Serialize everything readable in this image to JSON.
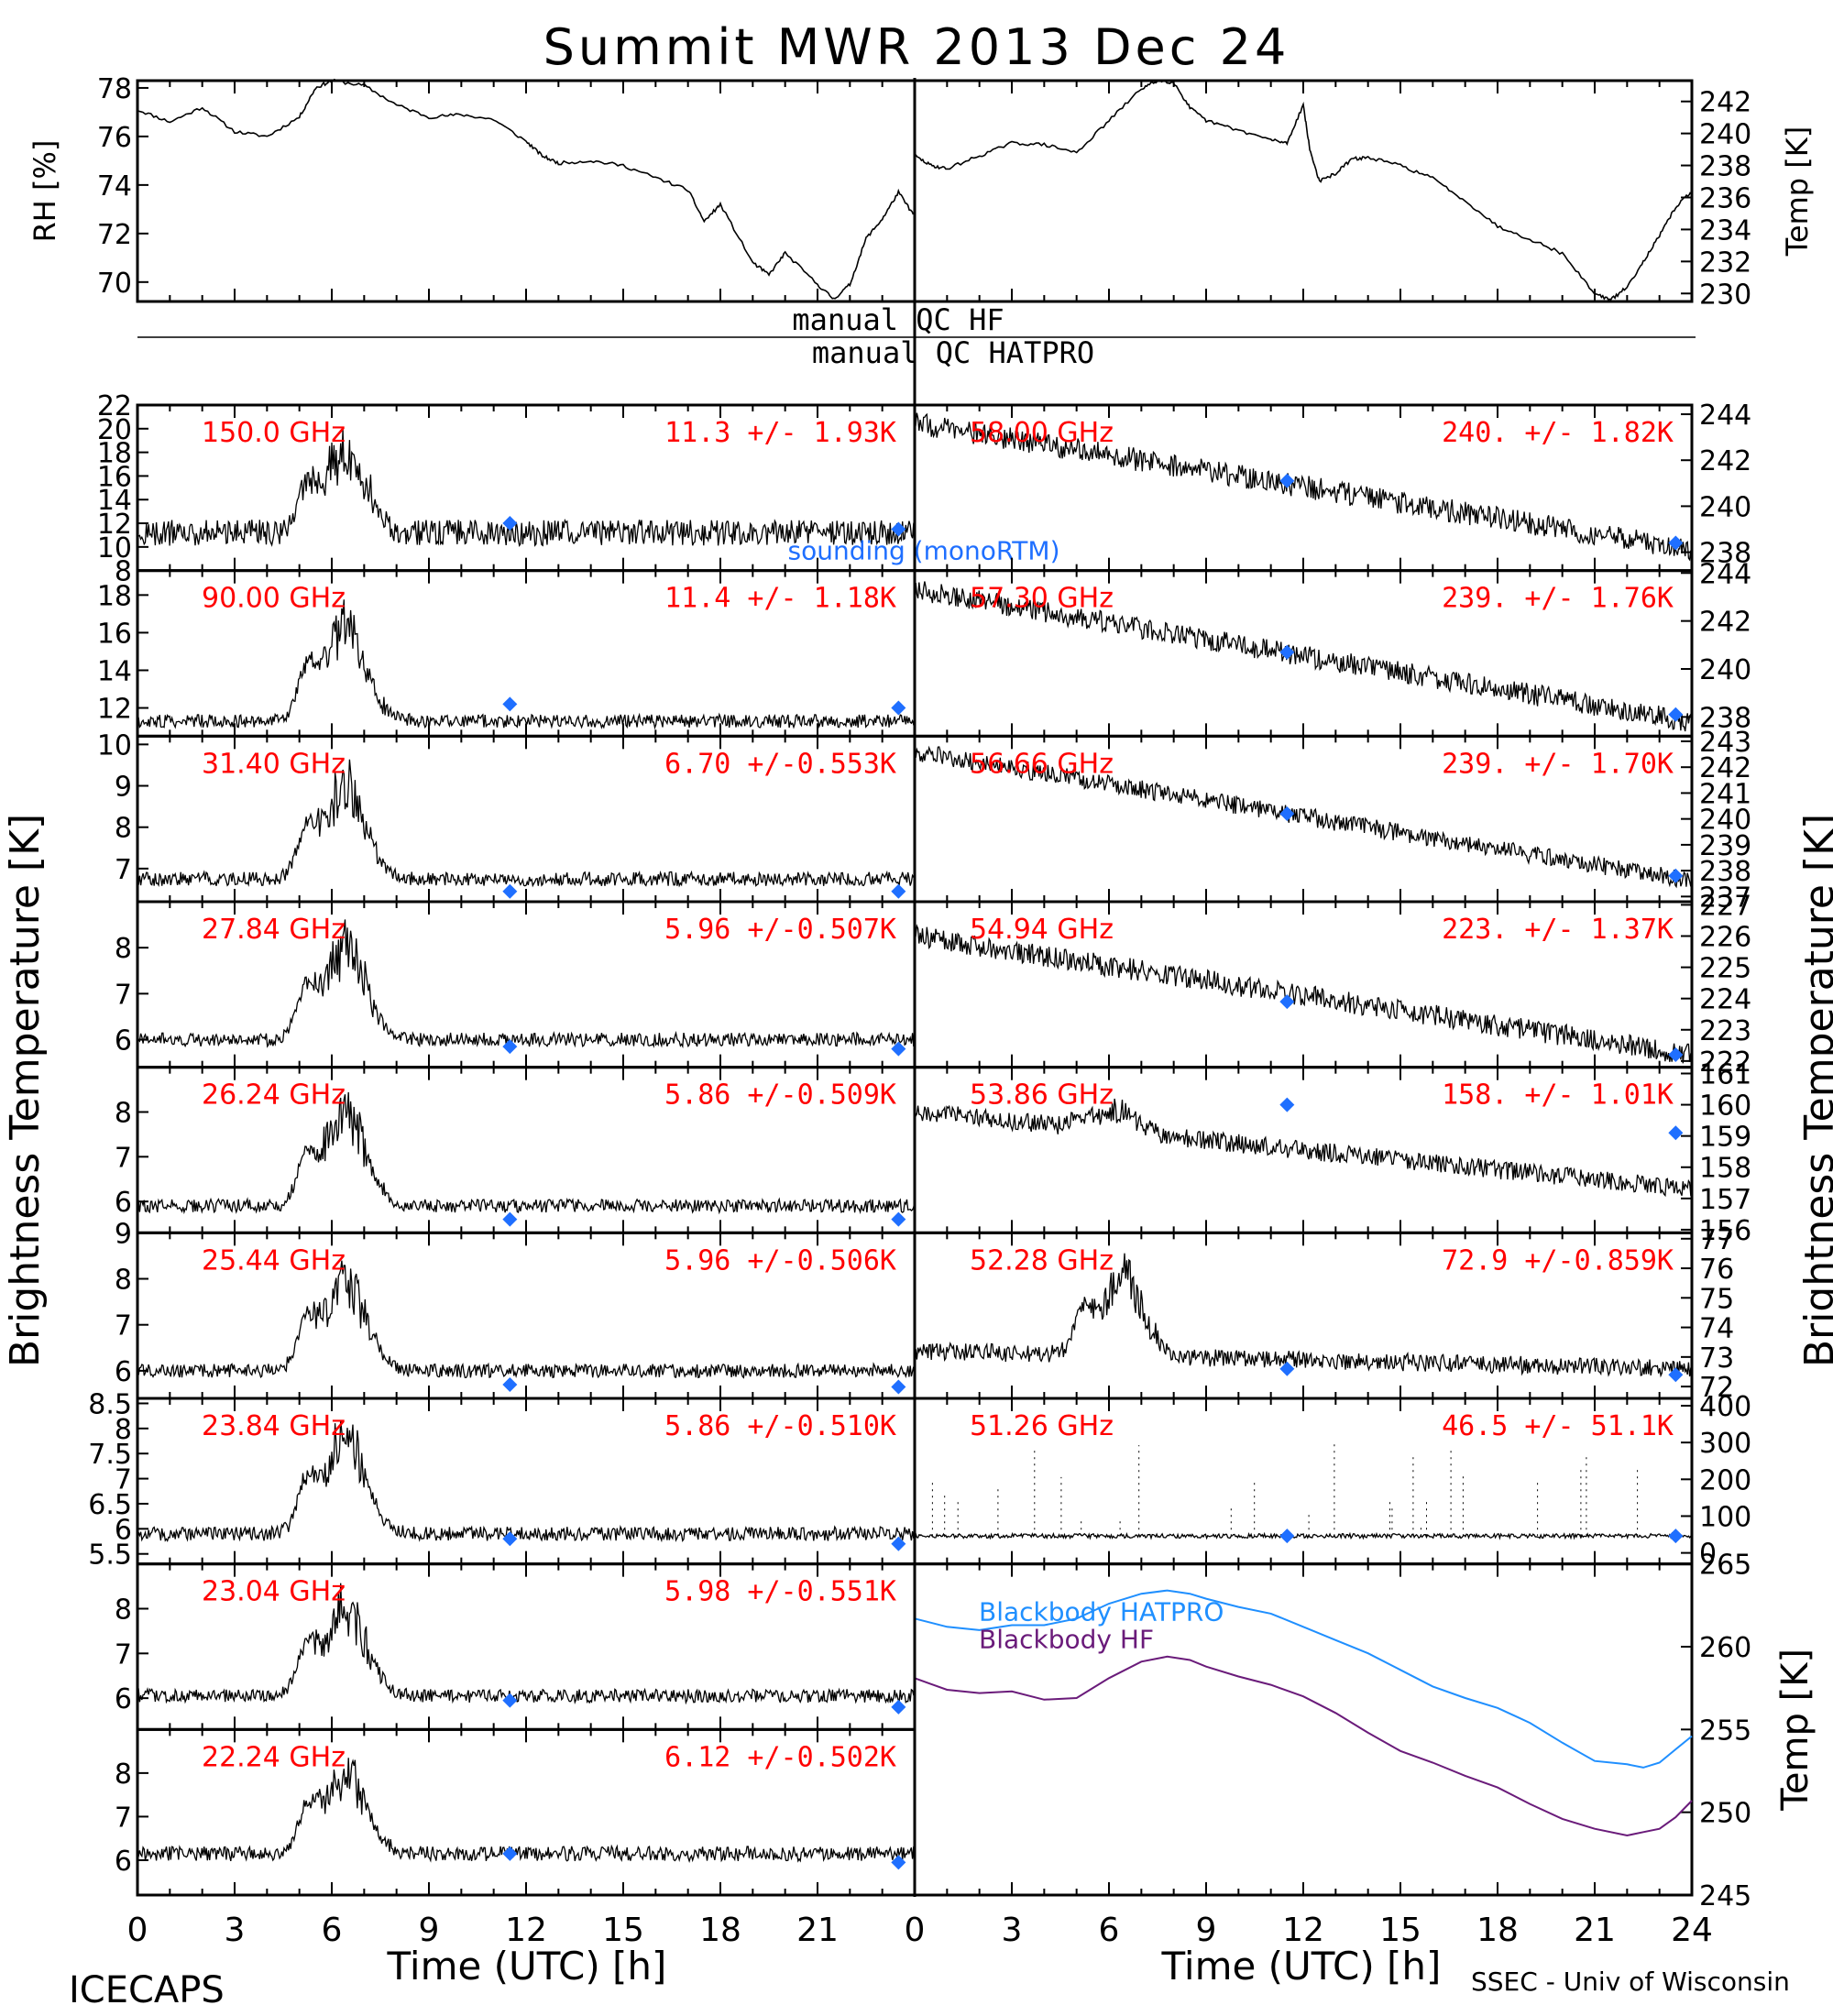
{
  "figure": {
    "title": "Summit MWR 2013 Dec 24",
    "footer_left": "ICECAPS",
    "footer_right": "SSEC - Univ of Wisconsin",
    "xlabel": "Time (UTC) [h]",
    "left_ylabel": "Brightness Temperature [K]",
    "right_ylabel": "Brightness Temperature [K]",
    "x_ticks": [
      "0",
      "3",
      "6",
      "9",
      "12",
      "15",
      "18",
      "21",
      "24"
    ],
    "qc_hf_label": "manual QC HF",
    "qc_hatpro_label": "manual QC HATPRO",
    "colors": {
      "trace": "#000000",
      "label": "#ff0000",
      "marker": "#1f6fff",
      "hatpro": "#1f8fff",
      "hf": "#6a1b7a"
    }
  },
  "chart_data": [
    {
      "id": "rh",
      "type": "line",
      "ylabel": "RH [%]",
      "xlim": [
        0,
        24
      ],
      "ylim": [
        69.2,
        78.3
      ],
      "yticks": [
        70,
        72,
        74,
        76,
        78
      ],
      "x": [
        0,
        1,
        2,
        3,
        4,
        5,
        5.5,
        6,
        7,
        8,
        9,
        10,
        11,
        12,
        12.5,
        13,
        14,
        15,
        16,
        17,
        17.5,
        18,
        19,
        19.5,
        20,
        21,
        21.5,
        22,
        22.5,
        23,
        23.5,
        24
      ],
      "y": [
        77.1,
        76.6,
        77.2,
        76.2,
        76.0,
        76.8,
        78.0,
        78.3,
        78.1,
        77.3,
        76.8,
        76.9,
        76.7,
        75.8,
        75.2,
        74.9,
        75.0,
        74.8,
        74.3,
        73.8,
        72.5,
        73.2,
        70.8,
        70.3,
        71.2,
        69.9,
        69.3,
        69.9,
        71.8,
        72.6,
        73.7,
        72.7
      ]
    },
    {
      "id": "temp",
      "type": "line",
      "ylabel": "Temp [K]",
      "xlim": [
        0,
        24
      ],
      "ylim": [
        229.5,
        243.3
      ],
      "yticks": [
        230,
        232,
        234,
        236,
        238,
        240,
        242
      ],
      "x": [
        0,
        0.5,
        1,
        2,
        3,
        4,
        5,
        6,
        7,
        7.5,
        8,
        8.5,
        9,
        10,
        11,
        11.5,
        12,
        12.2,
        12.5,
        13,
        13.5,
        14,
        15,
        16,
        17,
        18,
        19,
        20,
        21,
        21.5,
        22,
        22.5,
        23,
        23.5,
        24
      ],
      "y": [
        238.6,
        238.0,
        237.8,
        238.6,
        239.4,
        239.3,
        238.8,
        240.8,
        242.8,
        243.3,
        243.2,
        241.6,
        240.8,
        240.2,
        239.6,
        239.4,
        241.8,
        239.0,
        237.0,
        237.5,
        238.4,
        238.5,
        238.0,
        237.2,
        235.8,
        234.2,
        233.4,
        232.5,
        230.0,
        229.6,
        230.4,
        232.0,
        233.6,
        235.4,
        236.4
      ]
    },
    {
      "id": "f150",
      "side": "left",
      "freq": "150.0 GHz",
      "stat": "11.3 +/-  1.93K",
      "ylim": [
        8,
        22
      ],
      "yticks": [
        8,
        10,
        12,
        14,
        16,
        18,
        20,
        22
      ],
      "base": 11.2,
      "noise": 1.1,
      "spike": 9.0,
      "slope": 0,
      "markers": [
        {
          "x": 11.5,
          "y": 12.0
        },
        {
          "x": 23.5,
          "y": 11.5
        }
      ],
      "overlay": "sounding (monoRTM)"
    },
    {
      "id": "f90",
      "side": "left",
      "freq": "90.00 GHz",
      "stat": "11.4 +/-  1.18K",
      "ylim": [
        10.5,
        19.3
      ],
      "yticks": [
        12,
        14,
        16,
        18
      ],
      "base": 11.3,
      "noise": 0.35,
      "spike": 6.3,
      "slope": 0,
      "markers": [
        {
          "x": 11.5,
          "y": 12.2
        },
        {
          "x": 23.5,
          "y": 12.0
        }
      ]
    },
    {
      "id": "f3140",
      "side": "left",
      "freq": "31.40 GHz",
      "stat": "6.70 +/-0.553K",
      "ylim": [
        6.2,
        10.2
      ],
      "yticks": [
        7,
        8,
        9,
        10
      ],
      "base": 6.75,
      "noise": 0.17,
      "spike": 2.8,
      "slope": 0,
      "markers": [
        {
          "x": 11.5,
          "y": 6.45
        },
        {
          "x": 23.5,
          "y": 6.45
        }
      ]
    },
    {
      "id": "f2784",
      "side": "left",
      "freq": "27.84 GHz",
      "stat": "5.96 +/-0.507K",
      "ylim": [
        5.4,
        9.0
      ],
      "yticks": [
        6,
        7,
        8
      ],
      "base": 6.0,
      "noise": 0.15,
      "spike": 2.6,
      "slope": 0,
      "markers": [
        {
          "x": 11.5,
          "y": 5.85
        },
        {
          "x": 23.5,
          "y": 5.8
        }
      ]
    },
    {
      "id": "f2624",
      "side": "left",
      "freq": "26.24 GHz",
      "stat": "5.86 +/-0.509K",
      "ylim": [
        5.3,
        9.0
      ],
      "yticks": [
        6,
        7,
        8
      ],
      "base": 5.9,
      "noise": 0.15,
      "spike": 2.6,
      "slope": 0,
      "markers": [
        {
          "x": 11.5,
          "y": 5.6
        },
        {
          "x": 23.5,
          "y": 5.6
        }
      ]
    },
    {
      "id": "f2544",
      "side": "left",
      "freq": "25.44 GHz",
      "stat": "5.96 +/-0.506K",
      "ylim": [
        5.4,
        9.0
      ],
      "yticks": [
        6,
        7,
        8,
        9
      ],
      "base": 6.0,
      "noise": 0.15,
      "spike": 2.5,
      "slope": 0,
      "markers": [
        {
          "x": 11.5,
          "y": 5.7
        },
        {
          "x": 23.5,
          "y": 5.65
        }
      ]
    },
    {
      "id": "f2384",
      "side": "left",
      "freq": "23.84 GHz",
      "stat": "5.86 +/-0.510K",
      "ylim": [
        5.3,
        8.6
      ],
      "yticks": [
        5.5,
        6.0,
        6.5,
        7.0,
        7.5,
        8.0,
        8.5
      ],
      "base": 5.9,
      "noise": 0.14,
      "spike": 2.4,
      "slope": 0,
      "markers": [
        {
          "x": 11.5,
          "y": 5.8
        },
        {
          "x": 23.5,
          "y": 5.7
        }
      ]
    },
    {
      "id": "f2304",
      "side": "left",
      "freq": "23.04 GHz",
      "stat": "5.98 +/-0.551K",
      "ylim": [
        5.3,
        9.0
      ],
      "yticks": [
        6,
        7,
        8
      ],
      "base": 6.05,
      "noise": 0.15,
      "spike": 2.5,
      "slope": 0,
      "markers": [
        {
          "x": 11.5,
          "y": 5.95
        },
        {
          "x": 23.5,
          "y": 5.8
        }
      ]
    },
    {
      "id": "f2224",
      "side": "left",
      "freq": "22.24 GHz",
      "stat": "6.12 +/-0.502K",
      "ylim": [
        5.2,
        9.0
      ],
      "yticks": [
        6,
        7,
        8
      ],
      "base": 6.15,
      "noise": 0.17,
      "spike": 2.4,
      "slope": 0,
      "markers": [
        {
          "x": 11.5,
          "y": 6.15
        },
        {
          "x": 23.5,
          "y": 5.95
        }
      ]
    },
    {
      "id": "f5800",
      "side": "right",
      "freq": "58.00 GHz",
      "stat": "240. +/- 1.82K",
      "ylim": [
        237.2,
        244.4
      ],
      "yticks": [
        238,
        240,
        242,
        244
      ],
      "base": 243.6,
      "noise": 0.5,
      "spike": 0,
      "slope": -5.5,
      "markers": [
        {
          "x": 11.5,
          "y": 241.1
        },
        {
          "x": 23.5,
          "y": 238.4
        }
      ]
    },
    {
      "id": "f5730",
      "side": "right",
      "freq": "57.30 GHz",
      "stat": "239. +/- 1.76K",
      "ylim": [
        237.2,
        244.1
      ],
      "yticks": [
        238,
        240,
        242,
        244
      ],
      "base": 243.3,
      "noise": 0.45,
      "spike": 0,
      "slope": -5.5,
      "markers": [
        {
          "x": 11.5,
          "y": 240.7
        },
        {
          "x": 23.5,
          "y": 238.1
        }
      ]
    },
    {
      "id": "f5666",
      "side": "right",
      "freq": "56.66 GHz",
      "stat": "239. +/- 1.70K",
      "ylim": [
        236.8,
        243.2
      ],
      "yticks": [
        237,
        238,
        239,
        240,
        241,
        242,
        243
      ],
      "base": 242.6,
      "noise": 0.35,
      "spike": 0,
      "slope": -5.0,
      "markers": [
        {
          "x": 11.5,
          "y": 240.2
        },
        {
          "x": 23.5,
          "y": 237.8
        }
      ]
    },
    {
      "id": "f5494",
      "side": "right",
      "freq": "54.94 GHz",
      "stat": "223. +/- 1.37K",
      "ylim": [
        221.8,
        227.1
      ],
      "yticks": [
        222,
        223,
        224,
        225,
        226,
        227
      ],
      "base": 226.0,
      "noise": 0.35,
      "spike": 0,
      "slope": -3.8,
      "markers": [
        {
          "x": 11.5,
          "y": 223.9
        },
        {
          "x": 23.5,
          "y": 222.2
        }
      ]
    },
    {
      "id": "f5386",
      "side": "right",
      "freq": "53.86 GHz",
      "stat": "158. +/- 1.01K",
      "ylim": [
        155.9,
        161.2
      ],
      "yticks": [
        156,
        157,
        158,
        159,
        160,
        161
      ],
      "base": 159.8,
      "noise": 0.3,
      "spike": 0.8,
      "slope": -2.5,
      "markers": [
        {
          "x": 11.5,
          "y": 160.0
        },
        {
          "x": 23.5,
          "y": 159.1
        }
      ]
    },
    {
      "id": "f5228",
      "side": "right",
      "freq": "52.28 GHz",
      "stat": "72.9 +/-0.859K",
      "ylim": [
        71.6,
        77.2
      ],
      "yticks": [
        72,
        73,
        74,
        75,
        76,
        77
      ],
      "base": 73.2,
      "noise": 0.3,
      "spike": 3.5,
      "slope": -0.6,
      "markers": [
        {
          "x": 11.5,
          "y": 72.6
        },
        {
          "x": 23.5,
          "y": 72.4
        }
      ]
    },
    {
      "id": "f5126",
      "side": "right",
      "freq": "51.26 GHz",
      "stat": "46.5 +/- 51.1K",
      "ylim": [
        -30,
        420
      ],
      "yticks": [
        0,
        100,
        200,
        300,
        400
      ],
      "base": 46,
      "noise": 6,
      "spike": 0,
      "slope": 0,
      "markers": [
        {
          "x": 11.5,
          "y": 46
        },
        {
          "x": 23.5,
          "y": 46
        }
      ]
    },
    {
      "id": "blackbody",
      "type": "line",
      "side": "right",
      "ylabel": "Temp [K]",
      "xlim": [
        0,
        24
      ],
      "ylim": [
        245,
        265
      ],
      "yticks": [
        245,
        250,
        255,
        260,
        265
      ],
      "series": [
        {
          "name": "Blackbody HATPRO",
          "x": [
            0,
            1,
            2,
            3,
            4,
            5,
            6,
            7,
            7.8,
            8.5,
            9,
            10,
            11,
            12,
            13,
            14,
            15,
            16,
            17,
            18,
            19,
            20,
            21,
            22,
            22.5,
            23,
            23.5,
            24
          ],
          "y": [
            261.7,
            261.2,
            261.0,
            261.3,
            261.3,
            261.7,
            262.6,
            263.2,
            263.4,
            263.2,
            262.9,
            262.4,
            262.0,
            261.2,
            260.4,
            259.6,
            258.6,
            257.6,
            256.9,
            256.3,
            255.4,
            254.2,
            253.1,
            252.9,
            252.7,
            253.0,
            253.8,
            254.6
          ]
        },
        {
          "name": "Blackbody HF",
          "x": [
            0,
            1,
            2,
            3,
            4,
            5,
            6,
            7,
            7.8,
            8.5,
            9,
            10,
            11,
            12,
            13,
            14,
            15,
            16,
            17,
            18,
            19,
            20,
            21,
            22,
            22.5,
            23,
            23.5,
            24
          ],
          "y": [
            258.1,
            257.4,
            257.2,
            257.3,
            256.8,
            256.9,
            258.1,
            259.1,
            259.4,
            259.2,
            258.8,
            258.2,
            257.7,
            257.0,
            256.0,
            254.8,
            253.7,
            253.0,
            252.2,
            251.5,
            250.5,
            249.6,
            249.0,
            248.6,
            248.8,
            249.0,
            249.7,
            250.7
          ]
        }
      ]
    }
  ]
}
